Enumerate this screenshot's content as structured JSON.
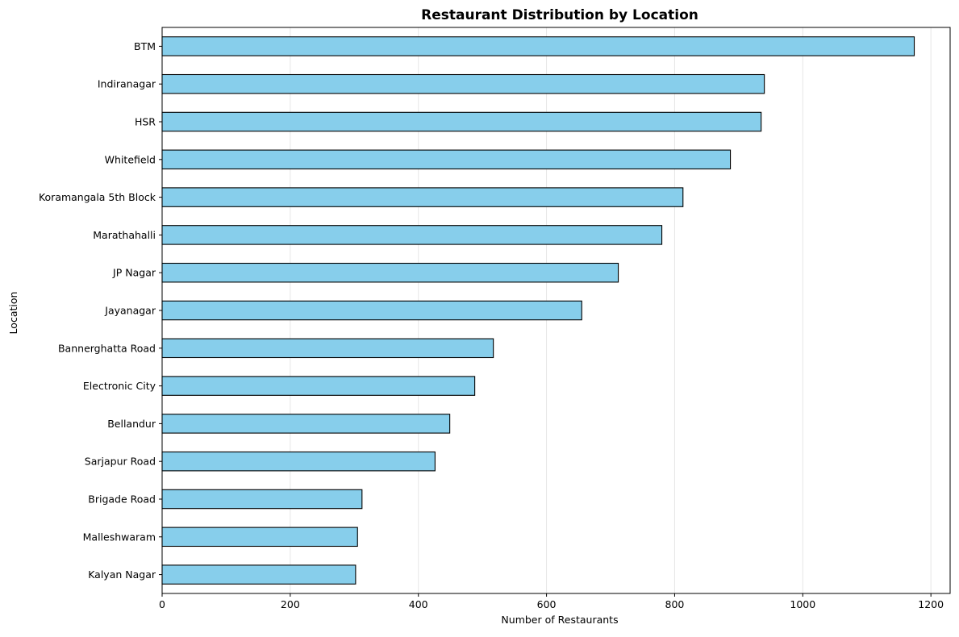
{
  "chart_data": {
    "type": "bar",
    "orientation": "horizontal",
    "title": "Restaurant Distribution by Location",
    "xlabel": "Number of Restaurants",
    "ylabel": "Location",
    "categories": [
      "BTM",
      "Indiranagar",
      "HSR",
      "Whitefield",
      "Koramangala 5th Block",
      "Marathahalli",
      "JP Nagar",
      "Jayanagar",
      "Bannerghatta Road",
      "Electronic City",
      "Bellandur",
      "Sarjapur Road",
      "Brigade Road",
      "Malleshwaram",
      "Kalyan Nagar"
    ],
    "values": [
      1174,
      940,
      935,
      887,
      813,
      780,
      712,
      655,
      517,
      488,
      449,
      426,
      312,
      305,
      302
    ],
    "xlim": [
      0,
      1230
    ],
    "xticks": [
      0,
      200,
      400,
      600,
      800,
      1000,
      1200
    ],
    "grid": "x-axis vertical lines",
    "legend": "none",
    "colors": {
      "bar_fill": "#87ceeb",
      "bar_edge": "#000000",
      "grid": "#e6e6e6"
    }
  }
}
